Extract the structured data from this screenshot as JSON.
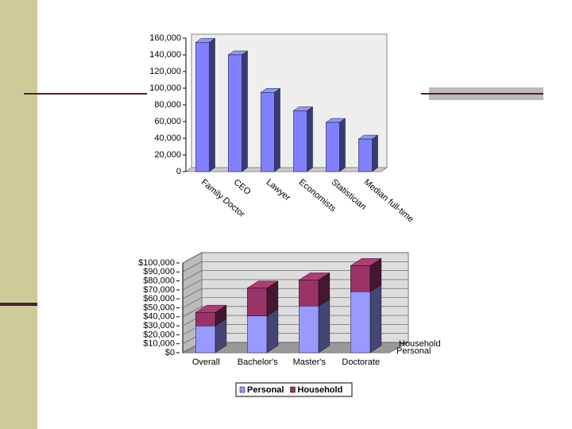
{
  "chart_data": [
    {
      "type": "bar",
      "categories": [
        "Family Doctor",
        "CEO",
        "Lawyer",
        "Economists",
        "Statistician",
        "Median full-time"
      ],
      "values": [
        155000,
        140000,
        95000,
        73000,
        59000,
        39000
      ],
      "color": "#8080ff",
      "ylim": [
        0,
        160000
      ],
      "yticks": [
        0,
        {
          "value": 20000,
          "label": "20,000"
        },
        {
          "value": 40000,
          "label": "40,000"
        },
        {
          "value": 60000,
          "label": "60,000"
        },
        {
          "value": 80000,
          "label": "80,000"
        },
        {
          "value": 100000,
          "label": "100,000"
        },
        {
          "value": 120000,
          "label": "120,000"
        },
        {
          "value": 140000,
          "label": "140,000"
        },
        {
          "value": 160000,
          "label": "160,000"
        }
      ],
      "grid": false
    },
    {
      "type": "stacked_bar",
      "categories": [
        "Overall",
        "Bachelor's",
        "Master's",
        "Doctorate"
      ],
      "series": [
        {
          "name": "Personal",
          "color": "#9999ff",
          "values": [
            30000,
            41000,
            52000,
            68000
          ]
        },
        {
          "name": "Household",
          "color": "#993366",
          "values": [
            15000,
            31000,
            29000,
            29000
          ]
        }
      ],
      "ylim": [
        0,
        100000
      ],
      "yticks": [
        {
          "value": 0,
          "label": "$0"
        },
        {
          "value": 10000,
          "label": "$10,000"
        },
        {
          "value": 20000,
          "label": "$20,000"
        },
        {
          "value": 30000,
          "label": "$30,000"
        },
        {
          "value": 40000,
          "label": "$40,000"
        },
        {
          "value": 50000,
          "label": "$50,000"
        },
        {
          "value": 60000,
          "label": "$60,000"
        },
        {
          "value": 70000,
          "label": "$70,000"
        },
        {
          "value": 80000,
          "label": "$80,000"
        },
        {
          "value": 90000,
          "label": "$90,000"
        },
        {
          "value": 100000,
          "label": "$100,000"
        }
      ],
      "grid": true,
      "legend": "bottom"
    }
  ]
}
